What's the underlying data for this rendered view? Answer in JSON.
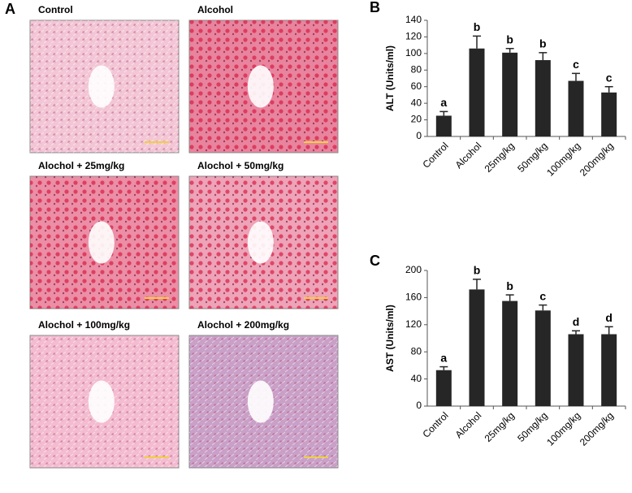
{
  "figure": {
    "label": "A",
    "images": [
      {
        "caption": "Control"
      },
      {
        "caption": "Alcohol"
      },
      {
        "caption": "Alochol + 25mg/kg"
      },
      {
        "caption": "Alochol + 50mg/kg"
      },
      {
        "caption": "Alochol + 100mg/kg"
      },
      {
        "caption": "Alochol + 200mg/kg"
      }
    ]
  },
  "chart_data": [
    {
      "type": "bar",
      "panel_label": "B",
      "ylabel": "ALT (Units/ml)",
      "categories": [
        "Control",
        "Alcohol",
        "25mg/kg",
        "50mg/kg",
        "100mg/kg",
        "200mg/kg"
      ],
      "values": [
        25,
        106,
        101,
        92,
        67,
        53
      ],
      "errors": [
        5,
        15,
        5,
        9,
        9,
        7
      ],
      "annotations": [
        "a",
        "b",
        "b",
        "b",
        "c",
        "c"
      ],
      "color": "#262626",
      "ylim": [
        0,
        140
      ],
      "yticks": [
        0,
        20,
        40,
        60,
        80,
        100,
        120,
        140
      ]
    },
    {
      "type": "bar",
      "panel_label": "C",
      "ylabel": "AST (Units/ml)",
      "categories": [
        "Control",
        "Alcohol",
        "25mg/kg",
        "50mg/kg",
        "100mg/kg",
        "200mg/kg"
      ],
      "values": [
        53,
        172,
        155,
        141,
        106,
        106
      ],
      "errors": [
        5,
        15,
        9,
        8,
        5,
        11
      ],
      "annotations": [
        "a",
        "b",
        "b",
        "c",
        "d",
        "d"
      ],
      "color": "#262626",
      "ylim": [
        0,
        200
      ],
      "yticks": [
        0,
        40,
        80,
        120,
        160,
        200
      ]
    }
  ]
}
